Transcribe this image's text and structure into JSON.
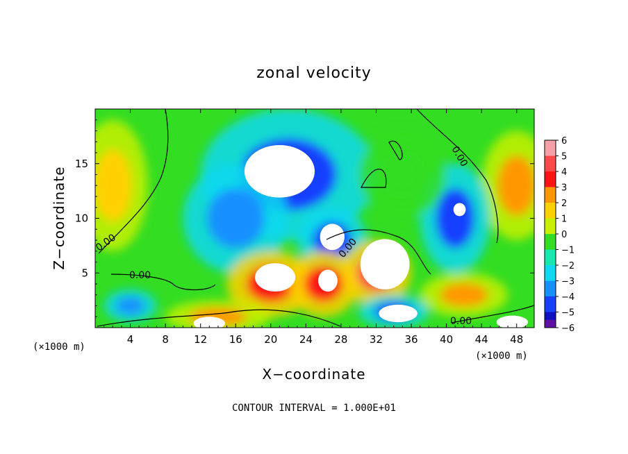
{
  "chart_data": {
    "type": "heatmap",
    "title": "zonal velocity",
    "xlabel": "X−coordinate",
    "ylabel": "Z−coordinate",
    "x_unit_left": "(×1000 m)",
    "x_unit_right": "(×1000 m)",
    "xlim": [
      0,
      50
    ],
    "ylim": [
      0,
      20
    ],
    "xticks": [
      4,
      8,
      12,
      16,
      20,
      24,
      28,
      32,
      36,
      40,
      44,
      48
    ],
    "yticks": [
      5,
      10,
      15
    ],
    "colorbar": {
      "levels": [
        "6",
        "5",
        "4",
        "3",
        "2",
        "1",
        "0",
        "−1",
        "−2",
        "−3",
        "−4",
        "−5",
        "−6"
      ],
      "colors": [
        "#f7a0a8",
        "#ff4a4a",
        "#ff1414",
        "#ff9800",
        "#ffd000",
        "#c8f000",
        "#33dd22",
        "#18e8b0",
        "#10d8f0",
        "#1890ff",
        "#1840ff",
        "#1010c0",
        "#6010a0"
      ]
    },
    "contour_labels": [
      "0.00",
      "0.00",
      "0.00",
      "0.00",
      "0.00"
    ],
    "footer": "CONTOUR INTERVAL =  1.000E+01",
    "blobs": [
      {
        "x": 2,
        "z": 13,
        "rx": 4,
        "rz": 6,
        "v": 2.5
      },
      {
        "x": 48,
        "z": 13,
        "rx": 4,
        "rz": 5,
        "v": 3
      },
      {
        "x": 22,
        "z": 14,
        "rx": 10,
        "rz": 6,
        "v": -4
      },
      {
        "x": 16,
        "z": 10,
        "rx": 6,
        "rz": 5,
        "v": -3
      },
      {
        "x": 41,
        "z": 10,
        "rx": 4,
        "rz": 5,
        "v": -4
      },
      {
        "x": 27,
        "z": 8,
        "rx": 4,
        "rz": 3,
        "v": -4
      },
      {
        "x": 20,
        "z": 4,
        "rx": 5,
        "rz": 3,
        "v": 4.5
      },
      {
        "x": 26,
        "z": 4,
        "rx": 4,
        "rz": 3,
        "v": 4
      },
      {
        "x": 32,
        "z": 5,
        "rx": 4,
        "rz": 3,
        "v": 5
      },
      {
        "x": 42,
        "z": 3,
        "rx": 5,
        "rz": 2,
        "v": 3
      },
      {
        "x": 34,
        "z": 1.5,
        "rx": 4,
        "rz": 1.5,
        "v": -4
      },
      {
        "x": 14,
        "z": 1,
        "rx": 6,
        "rz": 1.5,
        "v": 3
      },
      {
        "x": 4,
        "z": 2,
        "rx": 3,
        "rz": 1.5,
        "v": -3
      },
      {
        "x": 35,
        "z": 14,
        "rx": 5,
        "rz": 4,
        "v": 0.5
      }
    ],
    "overflow_regions": [
      {
        "x": 21,
        "z": 14.3,
        "rx": 4,
        "rz": 2.4
      },
      {
        "x": 33,
        "z": 5.8,
        "rx": 2.8,
        "rz": 2.3
      },
      {
        "x": 27,
        "z": 8.3,
        "rx": 1.4,
        "rz": 1.2
      },
      {
        "x": 20.5,
        "z": 4.6,
        "rx": 2.3,
        "rz": 1.3
      },
      {
        "x": 26.5,
        "z": 4.3,
        "rx": 1.1,
        "rz": 1.0
      },
      {
        "x": 41.5,
        "z": 10.8,
        "rx": 0.7,
        "rz": 0.6
      },
      {
        "x": 34.5,
        "z": 1.3,
        "rx": 2.2,
        "rz": 0.8
      },
      {
        "x": 13,
        "z": 0.4,
        "rx": 1.8,
        "rz": 0.6
      },
      {
        "x": 47.5,
        "z": 0.5,
        "rx": 1.8,
        "rz": 0.6
      }
    ]
  }
}
